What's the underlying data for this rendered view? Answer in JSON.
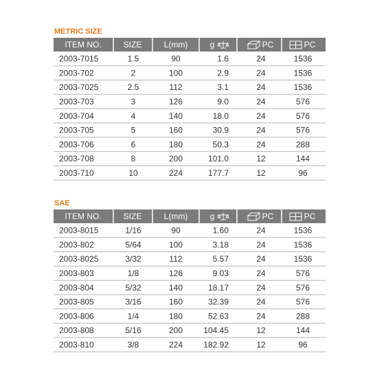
{
  "tables": [
    {
      "title": "METRIC SIZE",
      "header": [
        "ITEM NO.",
        "SIZE",
        "L(mm)",
        "g",
        "PC",
        "PC"
      ],
      "rows": [
        [
          "2003-7015",
          "1.5",
          "90",
          "1.6",
          "24",
          "1536"
        ],
        [
          "2003-702",
          "2",
          "100",
          "2.9",
          "24",
          "1536"
        ],
        [
          "2003-7025",
          "2.5",
          "112",
          "3.1",
          "24",
          "1536"
        ],
        [
          "2003-703",
          "3",
          "126",
          "9.0",
          "24",
          "576"
        ],
        [
          "2003-704",
          "4",
          "140",
          "18.0",
          "24",
          "576"
        ],
        [
          "2003-705",
          "5",
          "160",
          "30.9",
          "24",
          "576"
        ],
        [
          "2003-706",
          "6",
          "180",
          "50.3",
          "24",
          "288"
        ],
        [
          "2003-708",
          "8",
          "200",
          "101.0",
          "12",
          "144"
        ],
        [
          "2003-710",
          "10",
          "224",
          "177.7",
          "12",
          "96"
        ]
      ]
    },
    {
      "title": "SAE",
      "header": [
        "ITEM NO.",
        "SIZE",
        "L(mm)",
        "g",
        "PC",
        "PC"
      ],
      "rows": [
        [
          "2003-8015",
          "1/16",
          "90",
          "1.60",
          "24",
          "1536"
        ],
        [
          "2003-802",
          "5/64",
          "100",
          "3.18",
          "24",
          "1536"
        ],
        [
          "2003-8025",
          "3/32",
          "112",
          "5.57",
          "24",
          "1536"
        ],
        [
          "2003-803",
          "1/8",
          "126",
          "9.03",
          "24",
          "576"
        ],
        [
          "2003-804",
          "5/32",
          "140",
          "18.17",
          "24",
          "576"
        ],
        [
          "2003-805",
          "3/16",
          "160",
          "32.39",
          "24",
          "576"
        ],
        [
          "2003-806",
          "1/4",
          "180",
          "52.63",
          "24",
          "288"
        ],
        [
          "2003-808",
          "5/16",
          "200",
          "104.45",
          "12",
          "144"
        ],
        [
          "2003-810",
          "3/8",
          "224",
          "182.92",
          "12",
          "96"
        ]
      ]
    }
  ]
}
